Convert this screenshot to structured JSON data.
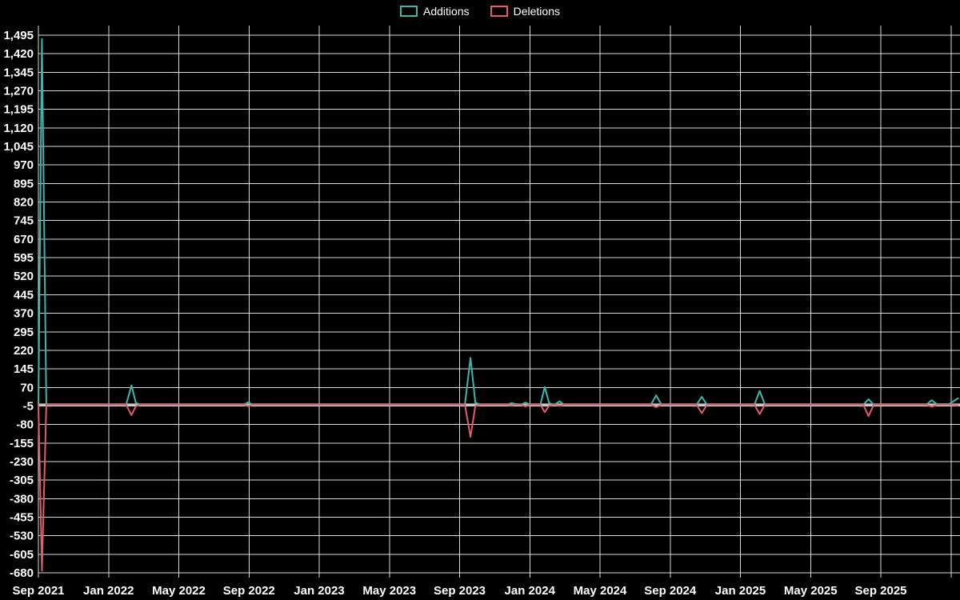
{
  "chart_data": {
    "type": "line",
    "title": "",
    "background": "#000000",
    "grid": {
      "on": true,
      "color": "#ffffff"
    },
    "legend": {
      "position": "top-center"
    },
    "x_axis": {
      "unit": "month",
      "tick_interval_months": 4,
      "ticks": [
        {
          "month": 0,
          "label": "Sep 2021"
        },
        {
          "month": 4,
          "label": "Jan 2022"
        },
        {
          "month": 8,
          "label": "May 2022"
        },
        {
          "month": 12,
          "label": "Sep 2022"
        },
        {
          "month": 16,
          "label": "Jan 2023"
        },
        {
          "month": 20,
          "label": "May 2023"
        },
        {
          "month": 24,
          "label": "Sep 2023"
        },
        {
          "month": 28,
          "label": "Jan 2024"
        },
        {
          "month": 32,
          "label": "May 2024"
        },
        {
          "month": 36,
          "label": "Sep 2024"
        },
        {
          "month": 40,
          "label": "Jan 2025"
        },
        {
          "month": 44,
          "label": "May 2025"
        },
        {
          "month": 48,
          "label": "Sep 2025"
        }
      ],
      "extra_gridline_months": [
        52
      ]
    },
    "y_axis": {
      "min": -680,
      "max": 1495,
      "step": 75,
      "zero_line": true,
      "tick_labels": [
        "1,495",
        "1,420",
        "1,345",
        "1,270",
        "1,195",
        "1,120",
        "1,045",
        "970",
        "895",
        "820",
        "745",
        "670",
        "595",
        "520",
        "445",
        "370",
        "295",
        "220",
        "145",
        "70",
        "-5",
        "-80",
        "-155",
        "-230",
        "-305",
        "-380",
        "-455",
        "-530",
        "-605",
        "-680"
      ],
      "tick_values": [
        1495,
        1420,
        1345,
        1270,
        1195,
        1120,
        1045,
        970,
        895,
        820,
        745,
        670,
        595,
        520,
        445,
        370,
        295,
        220,
        145,
        70,
        -5,
        -80,
        -155,
        -230,
        -305,
        -380,
        -455,
        -530,
        -605,
        -680
      ]
    },
    "series": [
      {
        "name": "Additions",
        "color": "#3ab7ab",
        "points": [
          [
            0,
            0
          ],
          [
            0.2,
            1480
          ],
          [
            0.45,
            0
          ],
          [
            5.0,
            0
          ],
          [
            5.3,
            78
          ],
          [
            5.55,
            8
          ],
          [
            5.8,
            0
          ],
          [
            11.7,
            0
          ],
          [
            11.95,
            10
          ],
          [
            12.2,
            0
          ],
          [
            24.3,
            0
          ],
          [
            24.62,
            190
          ],
          [
            24.9,
            8
          ],
          [
            25.2,
            0
          ],
          [
            26.7,
            0
          ],
          [
            26.95,
            6
          ],
          [
            27.2,
            3
          ],
          [
            27.5,
            0
          ],
          [
            27.75,
            9
          ],
          [
            28.0,
            0
          ],
          [
            28.6,
            0
          ],
          [
            28.85,
            72
          ],
          [
            29.1,
            6
          ],
          [
            29.4,
            0
          ],
          [
            29.7,
            14
          ],
          [
            29.95,
            0
          ],
          [
            34.9,
            0
          ],
          [
            35.2,
            38
          ],
          [
            35.5,
            0
          ],
          [
            37.5,
            0
          ],
          [
            37.8,
            32
          ],
          [
            38.1,
            0
          ],
          [
            40.8,
            0
          ],
          [
            41.1,
            56
          ],
          [
            41.4,
            0
          ],
          [
            47.0,
            0
          ],
          [
            47.3,
            22
          ],
          [
            47.6,
            0
          ],
          [
            50.6,
            0
          ],
          [
            50.9,
            18
          ],
          [
            51.2,
            2
          ],
          [
            51.9,
            3
          ],
          [
            52.4,
            26
          ]
        ]
      },
      {
        "name": "Deletions",
        "color": "#e25c6b",
        "points": [
          [
            0,
            0
          ],
          [
            0.2,
            -672
          ],
          [
            0.45,
            0
          ],
          [
            5.0,
            0
          ],
          [
            5.3,
            -42
          ],
          [
            5.55,
            -6
          ],
          [
            5.8,
            0
          ],
          [
            11.7,
            0
          ],
          [
            11.95,
            -6
          ],
          [
            12.2,
            0
          ],
          [
            24.3,
            0
          ],
          [
            24.62,
            -130
          ],
          [
            24.9,
            -5
          ],
          [
            25.2,
            0
          ],
          [
            26.7,
            0
          ],
          [
            26.95,
            -3
          ],
          [
            27.2,
            0
          ],
          [
            27.5,
            0
          ],
          [
            27.75,
            -7
          ],
          [
            28.0,
            0
          ],
          [
            28.6,
            0
          ],
          [
            28.85,
            -30
          ],
          [
            29.1,
            -4
          ],
          [
            29.4,
            0
          ],
          [
            29.7,
            -5
          ],
          [
            29.95,
            0
          ],
          [
            34.9,
            0
          ],
          [
            35.2,
            -10
          ],
          [
            35.5,
            0
          ],
          [
            37.5,
            0
          ],
          [
            37.8,
            -34
          ],
          [
            38.1,
            0
          ],
          [
            40.8,
            0
          ],
          [
            41.1,
            -38
          ],
          [
            41.4,
            0
          ],
          [
            47.0,
            0
          ],
          [
            47.3,
            -46
          ],
          [
            47.6,
            0
          ],
          [
            50.6,
            0
          ],
          [
            50.9,
            -8
          ],
          [
            51.2,
            0
          ],
          [
            51.9,
            0
          ],
          [
            52.4,
            -3
          ]
        ]
      }
    ]
  }
}
